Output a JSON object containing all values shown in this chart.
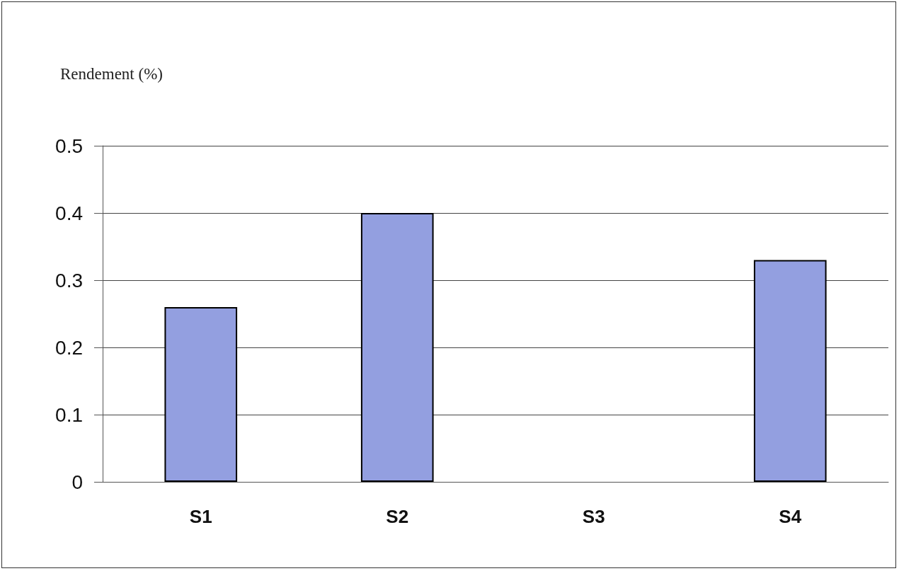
{
  "chart_data": {
    "type": "bar",
    "ylabel": "Rendement (%)",
    "categories": [
      "S1",
      "S2",
      "S3",
      "S4"
    ],
    "values": [
      0.26,
      0.4,
      null,
      0.33
    ],
    "color": "#939fe0",
    "ylim": [
      0,
      0.5
    ],
    "yticks": [
      0,
      0.1,
      0.2,
      0.3,
      0.4,
      0.5
    ],
    "grid": "y"
  }
}
